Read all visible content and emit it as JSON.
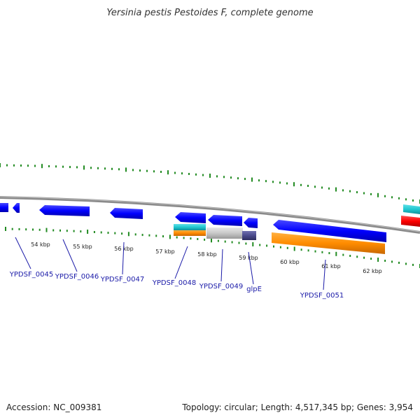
{
  "header": {
    "title": "Yersinia pestis Pestoides F, complete genome"
  },
  "footer": {
    "accession": "Accession: NC_009381",
    "summary": "Topology: circular; Length: 4,517,345 bp; Genes: 3,954"
  },
  "ruler": {
    "labels": [
      "54 kbp",
      "55 kbp",
      "56 kbp",
      "57 kbp",
      "58 kbp",
      "59 kbp",
      "60 kbp",
      "61 kbp",
      "62 kbp"
    ],
    "tick_color": "#228b22",
    "backbone_color": "#888888"
  },
  "feature_colors": {
    "cds": "#0000ff",
    "trna_like": "#20c8d0",
    "orange": "#ff8c00",
    "gray": "#c8c8c8",
    "slate": "#4b4b8c",
    "red": "#ff0000"
  },
  "gene_labels": [
    "YPDSF_0045",
    "YPDSF_0046",
    "YPDSF_0047",
    "YPDSF_0048",
    "YPDSF_0049",
    "glpE",
    "YPDSF_0051"
  ]
}
